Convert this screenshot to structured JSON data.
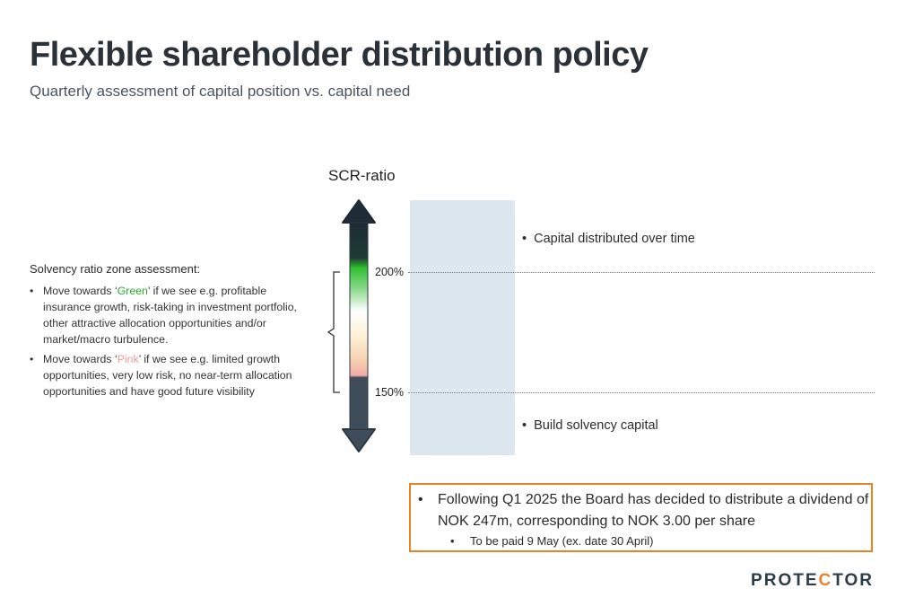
{
  "header": {
    "title": "Flexible shareholder distribution policy",
    "subtitle": "Quarterly assessment of capital position vs. capital need"
  },
  "zone_assessment": {
    "heading": "Solvency ratio zone assessment:",
    "items": [
      {
        "prefix": "Move towards ‘",
        "highlight": "Green",
        "suffix": "’ if we see e.g. profitable insurance growth, risk-taking in investment portfolio, other attractive allocation opportunities and/or market/macro turbulence."
      },
      {
        "prefix": "Move towards ‘",
        "highlight": "Pink",
        "suffix": "’ if we see e.g. limited growth opportunities, very low risk, no near-term allocation opportunities and have good future visibility"
      }
    ]
  },
  "diagram": {
    "axis_label": "SCR-ratio",
    "thresholds": [
      "200%",
      "150%"
    ],
    "note_top": "Capital distributed over time",
    "note_bottom": "Build solvency capital"
  },
  "dividend": {
    "main": "Following Q1 2025 the Board has decided to distribute a dividend of NOK 247m, corresponding to NOK 3.00 per share",
    "sub": "To be paid 9 May (ex. date 30 April)"
  },
  "logo": {
    "text_before": "PROTE",
    "text_dot": "C",
    "text_after": "TOR"
  },
  "colors": {
    "green": "#2aa82a",
    "pink": "#e79b9b",
    "accent_orange": "#e7832b",
    "arrow_dark": "#3f4c5a",
    "band_blue": "#dde7f0"
  },
  "bullet": "•"
}
